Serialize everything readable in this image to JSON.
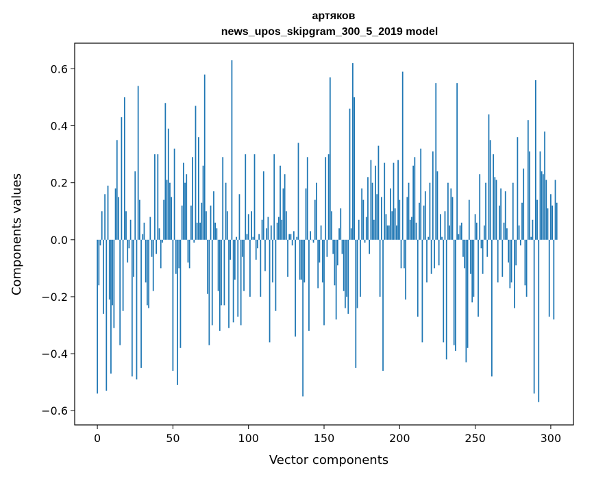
{
  "chart_data": {
    "type": "bar",
    "title": "артяков",
    "subtitle": "news_upos_skipgram_300_5_2019 model",
    "xlabel": "Vector components",
    "ylabel": "Components values",
    "xlim": [
      -15,
      315
    ],
    "ylim": [
      -0.65,
      0.69
    ],
    "xticks": [
      0,
      50,
      100,
      150,
      200,
      250,
      300
    ],
    "xtick_labels": [
      "0",
      "50",
      "100",
      "150",
      "200",
      "250",
      "300"
    ],
    "yticks": [
      -0.6,
      -0.4,
      -0.2,
      0.0,
      0.2,
      0.4,
      0.6
    ],
    "ytick_labels": [
      "−0.6",
      "−0.4",
      "−0.2",
      "0.0",
      "0.2",
      "0.4",
      "0.6"
    ],
    "grid": false,
    "bar_color": "#1f77b4",
    "values": [
      -0.54,
      -0.16,
      -0.02,
      0.1,
      -0.26,
      0.16,
      -0.53,
      0.19,
      -0.21,
      -0.47,
      -0.23,
      -0.31,
      0.18,
      0.35,
      0.15,
      -0.37,
      0.43,
      -0.25,
      0.5,
      0.1,
      -0.08,
      -0.03,
      0.07,
      -0.48,
      -0.13,
      0.24,
      -0.49,
      0.54,
      0.14,
      -0.45,
      0.02,
      0.06,
      -0.15,
      -0.23,
      -0.24,
      0.08,
      -0.06,
      -0.18,
      0.3,
      -0.05,
      0.3,
      0.04,
      -0.1,
      -0.01,
      0.14,
      0.48,
      0.21,
      0.39,
      0.2,
      0.15,
      -0.46,
      0.32,
      -0.12,
      -0.51,
      -0.1,
      -0.38,
      0.12,
      0.27,
      0.2,
      0.23,
      -0.08,
      -0.1,
      0.12,
      0.29,
      -0.01,
      0.47,
      0.06,
      0.36,
      0.06,
      0.13,
      0.26,
      0.58,
      0.1,
      -0.19,
      -0.37,
      0.12,
      -0.3,
      0.17,
      0.06,
      0.04,
      -0.18,
      -0.32,
      -0.23,
      0.29,
      -0.23,
      0.2,
      0.1,
      -0.31,
      -0.07,
      0.63,
      -0.29,
      -0.14,
      0.01,
      -0.27,
      0.16,
      -0.3,
      -0.06,
      -0.18,
      0.3,
      0.02,
      0.09,
      -0.2,
      0.1,
      0.01,
      0.3,
      -0.07,
      -0.03,
      0.02,
      -0.2,
      0.07,
      0.24,
      -0.11,
      0.04,
      0.08,
      -0.36,
      0.05,
      -0.15,
      0.3,
      -0.25,
      0.06,
      0.08,
      0.26,
      0.07,
      0.18,
      0.23,
      0.1,
      -0.13,
      0.02,
      0.02,
      -0.02,
      0.03,
      -0.34,
      0.01,
      0.34,
      -0.14,
      -0.14,
      -0.55,
      -0.15,
      0.18,
      0.29,
      -0.32,
      0.03,
      0.0,
      -0.01,
      0.14,
      0.2,
      -0.17,
      -0.08,
      0.05,
      -0.15,
      -0.3,
      0.29,
      -0.06,
      0.3,
      0.57,
      0.1,
      -0.05,
      -0.16,
      -0.28,
      -0.09,
      0.04,
      0.11,
      -0.05,
      -0.18,
      -0.24,
      -0.2,
      -0.26,
      0.46,
      0.04,
      0.62,
      0.5,
      -0.45,
      -0.24,
      0.07,
      -0.2,
      0.18,
      0.14,
      -0.01,
      0.08,
      0.22,
      -0.05,
      0.28,
      0.2,
      0.07,
      0.26,
      0.16,
      0.33,
      -0.2,
      0.15,
      -0.46,
      0.27,
      0.09,
      0.05,
      0.05,
      0.18,
      0.1,
      0.27,
      0.11,
      0.05,
      0.28,
      0.14,
      -0.1,
      0.59,
      -0.1,
      -0.21,
      0.15,
      0.2,
      0.07,
      0.08,
      0.26,
      0.29,
      0.06,
      -0.27,
      0.13,
      0.32,
      -0.36,
      0.12,
      0.17,
      -0.15,
      0.01,
      0.2,
      -0.12,
      0.31,
      -0.1,
      0.55,
      0.24,
      -0.09,
      0.09,
      0.01,
      -0.36,
      0.1,
      -0.42,
      0.2,
      0.05,
      0.18,
      0.15,
      -0.37,
      -0.39,
      0.55,
      0.02,
      0.05,
      0.06,
      -0.06,
      -0.1,
      -0.43,
      -0.38,
      0.14,
      -0.12,
      -0.22,
      -0.2,
      0.09,
      0.06,
      -0.27,
      0.23,
      -0.03,
      -0.12,
      0.05,
      0.2,
      -0.06,
      0.44,
      0.35,
      -0.48,
      0.3,
      0.22,
      0.21,
      -0.15,
      0.12,
      0.18,
      -0.13,
      0.06,
      0.17,
      0.04,
      -0.08,
      -0.17,
      -0.15,
      0.2,
      -0.24,
      -0.09,
      0.36,
      0.05,
      -0.02,
      0.13,
      0.25,
      -0.16,
      -0.2,
      0.42,
      0.31,
      0.01,
      0.07,
      -0.54,
      0.56,
      0.14,
      -0.57,
      0.31,
      0.24,
      0.23,
      0.38,
      0.21,
      0.11,
      -0.27,
      0.16,
      0.12,
      -0.28,
      0.21,
      0.13
    ]
  }
}
